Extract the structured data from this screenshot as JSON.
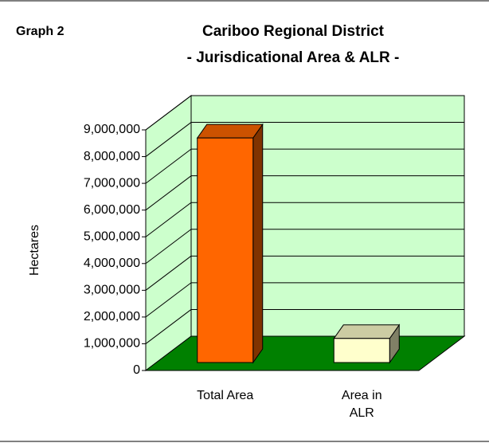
{
  "chart_data": {
    "type": "bar3d",
    "label": "Graph 2",
    "title": "Cariboo Regional District",
    "subtitle": "- Jurisdicational Area & ALR -",
    "y_label": "Hectares",
    "categories": [
      "Total Area",
      "Area in ALR"
    ],
    "values": [
      8400000,
      900000
    ],
    "colors": [
      "#ff6600",
      "#ffffcc"
    ],
    "ylim": [
      0,
      9000000
    ],
    "yticks": [
      0,
      {
        "value": 1000000,
        "label": "1,000,000"
      },
      {
        "value": 2000000,
        "label": "2,000,000"
      },
      {
        "value": 3000000,
        "label": "3,000,000"
      },
      {
        "value": 4000000,
        "label": "4,000,000"
      },
      {
        "value": 5000000,
        "label": "5,000,000"
      },
      {
        "value": 6000000,
        "label": "6,000,000"
      },
      {
        "value": 7000000,
        "label": "7,000,000"
      },
      {
        "value": 8000000,
        "label": "8,000,000"
      },
      {
        "value": 9000000,
        "label": "9,000,000"
      }
    ],
    "grid": true,
    "wall_color": "#ccffcc",
    "floor_color": "#008000"
  }
}
